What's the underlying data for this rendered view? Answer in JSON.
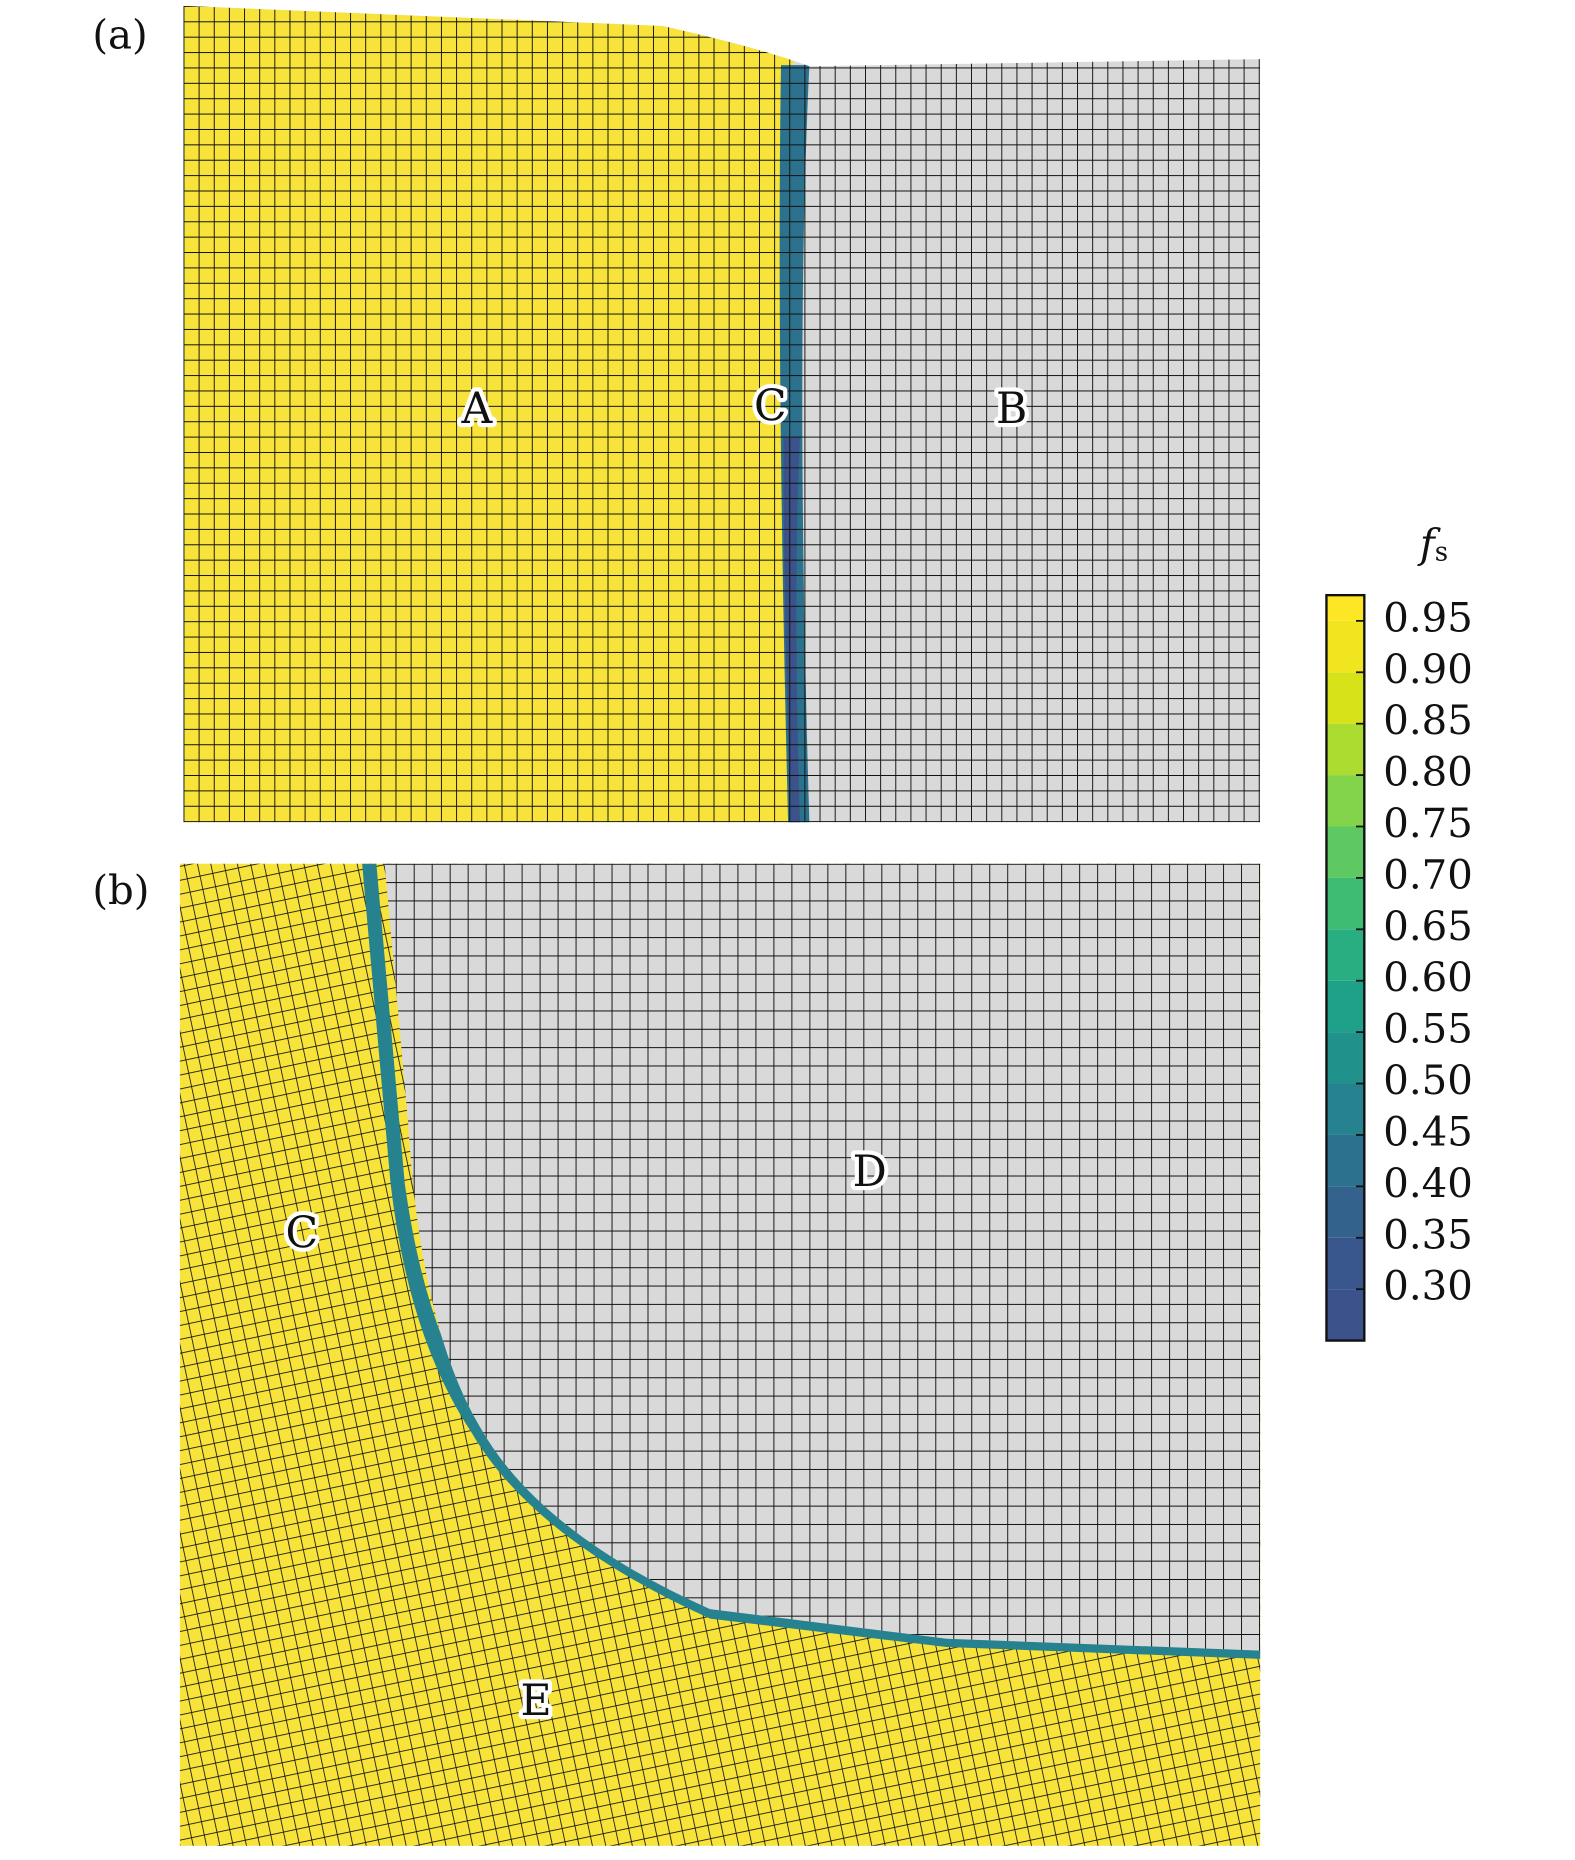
{
  "panels": [
    {
      "label": "(a)",
      "regions": [
        {
          "label": "A"
        },
        {
          "label": "C"
        },
        {
          "label": "B"
        }
      ]
    },
    {
      "label": "(b)",
      "regions": [
        {
          "label": "D"
        },
        {
          "label": "C"
        },
        {
          "label": "E"
        }
      ]
    }
  ],
  "colorbar": {
    "label": {
      "main": "f",
      "sub": "s"
    },
    "lim": [
      0.25,
      0.975
    ],
    "ticks": [
      0.95,
      {
        "value": 0.9,
        "label": "0.90"
      },
      0.85,
      {
        "value": 0.8,
        "label": "0.80"
      },
      0.75,
      {
        "value": 0.7,
        "label": "0.70"
      },
      0.65,
      {
        "value": 0.6,
        "label": "0.60"
      },
      0.55,
      {
        "value": 0.5,
        "label": "0.50"
      },
      0.45,
      {
        "value": 0.4,
        "label": "0.40"
      },
      0.35,
      {
        "value": 0.3,
        "label": "0.30"
      }
    ],
    "colors": [
      "#3b528b",
      "#39578c",
      "#33638d",
      "#2c728e",
      "#26828e",
      "#21918c",
      "#1fa088",
      "#28ae80",
      "#3fbc73",
      "#5ec962",
      "#84d44b",
      "#addc30",
      "#d8e219",
      "#f0e51f",
      "#fde725"
    ]
  }
}
